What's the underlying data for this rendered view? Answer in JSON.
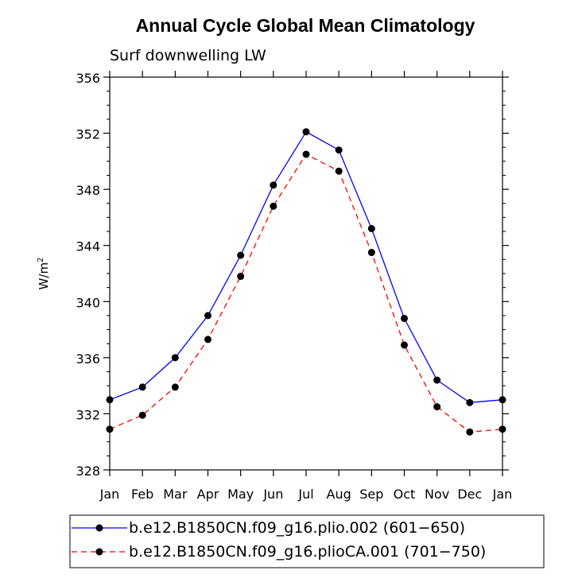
{
  "chart_data": {
    "type": "line",
    "title": "Annual Cycle Global Mean Climatology",
    "subtitle": "Surf downwelling LW",
    "ylabel": "W/m",
    "ylabel_superscript": "2",
    "xlabel": "",
    "categories": [
      "Jan",
      "Feb",
      "Mar",
      "Apr",
      "May",
      "Jun",
      "Jul",
      "Aug",
      "Sep",
      "Oct",
      "Nov",
      "Dec",
      "Jan"
    ],
    "ylim": [
      328,
      356
    ],
    "yticks": [
      328,
      332,
      336,
      340,
      344,
      348,
      352,
      356
    ],
    "legend_position": "bottom",
    "series": [
      {
        "name": "b.e12.B1850CN.f09_g16.plio.002 (601−650)",
        "color": "#0000ff",
        "dash": "solid",
        "values": [
          333.0,
          333.9,
          336.0,
          339.0,
          343.3,
          348.3,
          352.1,
          350.8,
          345.2,
          338.8,
          334.4,
          332.8,
          333.0
        ]
      },
      {
        "name": "b.e12.B1850CN.f09_g16.plioCA.001 (701−750)",
        "color": "#ff0000",
        "dash": "dashed",
        "values": [
          330.9,
          331.9,
          333.9,
          337.3,
          341.8,
          346.8,
          350.5,
          349.3,
          343.5,
          336.9,
          332.5,
          330.7,
          330.9
        ]
      }
    ]
  }
}
